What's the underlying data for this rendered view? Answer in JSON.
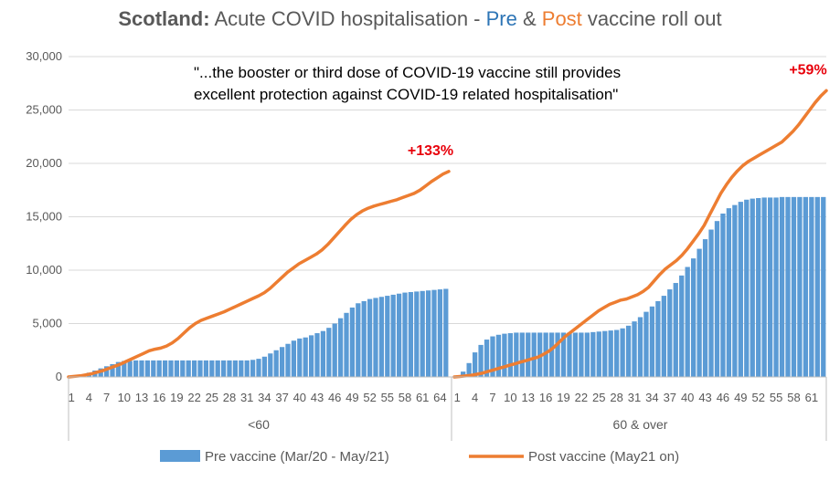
{
  "title": {
    "bold": "Scotland:",
    "part1": " Acute COVID hospitalisation - ",
    "pre": "Pre",
    "amp": " & ",
    "post": "Post",
    "part2": " vaccine roll out"
  },
  "quote_line1": "\"...the booster or third dose of COVID-19 vaccine still provides",
  "quote_line2": "excellent protection against COVID-19 related hospitalisation\"",
  "chart_data": {
    "type": "bar",
    "ylim": [
      0,
      30000
    ],
    "yticks": [
      "0",
      "5,000",
      "10,000",
      "15,000",
      "20,000",
      "25,000",
      "30,000"
    ],
    "grid": true,
    "legend_position": "bottom",
    "groups": [
      {
        "name": "<60",
        "x_tick_labels": [
          "1",
          "4",
          "7",
          "10",
          "13",
          "16",
          "19",
          "22",
          "25",
          "28",
          "31",
          "34",
          "37",
          "40",
          "43",
          "46",
          "49",
          "52",
          "55",
          "58",
          "61",
          "64"
        ],
        "series": [
          {
            "name": "Pre vaccine (Mar/20 - May/21)",
            "type": "bar",
            "values": [
              0,
              100,
              200,
              400,
              600,
              800,
              1000,
              1200,
              1400,
              1500,
              1500,
              1550,
              1550,
              1550,
              1550,
              1550,
              1550,
              1550,
              1550,
              1550,
              1550,
              1550,
              1550,
              1550,
              1550,
              1550,
              1550,
              1550,
              1550,
              1550,
              1550,
              1600,
              1700,
              1900,
              2200,
              2500,
              2800,
              3100,
              3400,
              3600,
              3700,
              3900,
              4100,
              4300,
              4600,
              5000,
              5500,
              6000,
              6500,
              6900,
              7100,
              7300,
              7400,
              7500,
              7600,
              7700,
              7800,
              7900,
              7950,
              8000,
              8050,
              8100,
              8150,
              8200,
              8250
            ]
          },
          {
            "name": "Post vaccine (May21 on)",
            "type": "line",
            "values": [
              0,
              50,
              100,
              200,
              300,
              450,
              600,
              800,
              1000,
              1200,
              1450,
              1700,
              1950,
              2200,
              2450,
              2600,
              2700,
              2900,
              3200,
              3600,
              4100,
              4600,
              5000,
              5300,
              5500,
              5700,
              5900,
              6100,
              6350,
              6600,
              6850,
              7100,
              7350,
              7600,
              7900,
              8300,
              8800,
              9300,
              9800,
              10200,
              10600,
              10900,
              11200,
              11500,
              11900,
              12400,
              13000,
              13600,
              14200,
              14750,
              15200,
              15550,
              15800,
              16000,
              16150,
              16300,
              16450,
              16600,
              16800,
              17000,
              17200,
              17500,
              17900,
              18300,
              18650,
              19000,
              19250
            ]
          }
        ],
        "annotation": "+133%"
      },
      {
        "name": "60 & over",
        "x_tick_labels": [
          "1",
          "4",
          "7",
          "10",
          "13",
          "16",
          "19",
          "22",
          "25",
          "28",
          "31",
          "34",
          "37",
          "40",
          "43",
          "46",
          "49",
          "52",
          "55",
          "58",
          "61"
        ],
        "series": [
          {
            "name": "Pre vaccine (Mar/20 - May/21)",
            "type": "bar",
            "values": [
              0,
              500,
              1300,
              2300,
              3000,
              3500,
              3800,
              3950,
              4050,
              4100,
              4150,
              4150,
              4150,
              4150,
              4150,
              4150,
              4150,
              4150,
              4150,
              4150,
              4150,
              4150,
              4150,
              4200,
              4250,
              4300,
              4350,
              4400,
              4550,
              4800,
              5200,
              5600,
              6100,
              6600,
              7100,
              7600,
              8200,
              8800,
              9500,
              10300,
              11100,
              12000,
              12900,
              13800,
              14600,
              15300,
              15800,
              16100,
              16400,
              16600,
              16700,
              16750,
              16800,
              16800,
              16800,
              16850,
              16850,
              16850,
              16850,
              16850,
              16850,
              16850,
              16850
            ]
          },
          {
            "name": "Post vaccine (May21 on)",
            "type": "line",
            "values": [
              0,
              40,
              90,
              150,
              250,
              350,
              500,
              650,
              800,
              950,
              1100,
              1250,
              1400,
              1550,
              1700,
              1850,
              2100,
              2400,
              2800,
              3300,
              3800,
              4200,
              4600,
              5000,
              5400,
              5800,
              6200,
              6500,
              6800,
              7000,
              7200,
              7300,
              7500,
              7700,
              8000,
              8400,
              9000,
              9600,
              10100,
              10500,
              10900,
              11400,
              12000,
              12700,
              13400,
              14200,
              15200,
              16200,
              17200,
              18000,
              18700,
              19300,
              19800,
              20200,
              20500,
              20800,
              21100,
              21400,
              21700,
              22000,
              22500,
              23000,
              23600,
              24300,
              25000,
              25700,
              26300,
              26800
            ]
          }
        ],
        "annotation": "+59%"
      }
    ],
    "legend": [
      "Pre vaccine (Mar/20 - May/21)",
      "Post vaccine (May21 on)"
    ]
  }
}
